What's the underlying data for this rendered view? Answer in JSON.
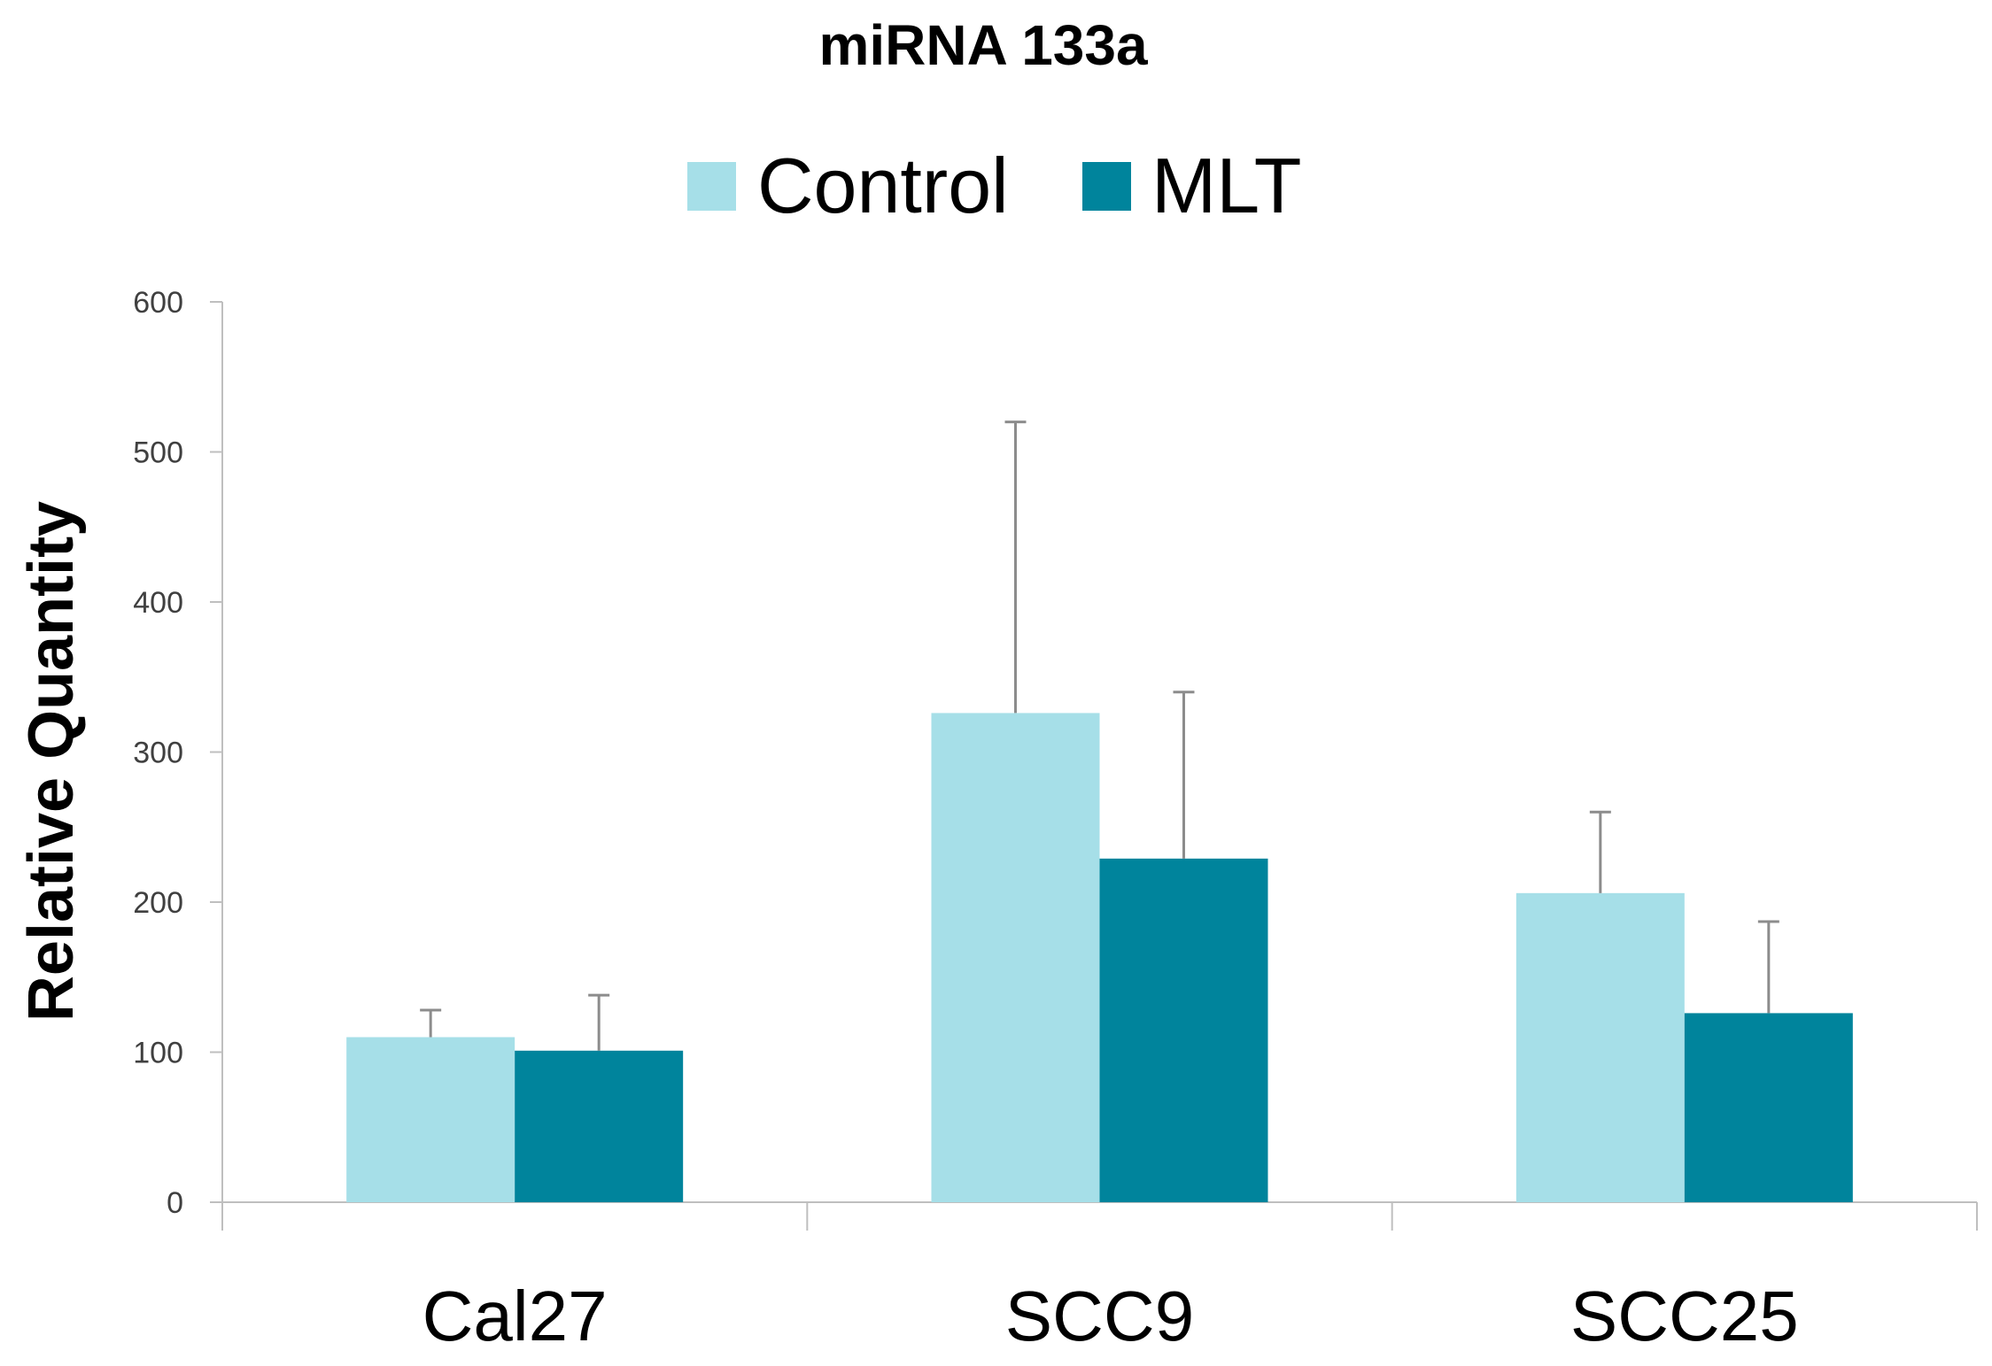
{
  "chart_data": {
    "type": "bar",
    "title": "miRNA 133a",
    "xlabel": "",
    "ylabel": "Relative Quantity",
    "categories": [
      "Cal27",
      "SCC9",
      "SCC25"
    ],
    "series": [
      {
        "name": "Control",
        "color": "#a6dfe8",
        "values": [
          110,
          326,
          206
        ],
        "error_upper": [
          128,
          520,
          260
        ]
      },
      {
        "name": "MLT",
        "color": "#00849c",
        "values": [
          101,
          229,
          126
        ],
        "error_upper": [
          138,
          340,
          187
        ]
      }
    ],
    "ylim": [
      0,
      600
    ],
    "yticks": [
      0,
      100,
      200,
      300,
      400,
      500,
      600
    ],
    "grid": false,
    "legend": "top-center"
  }
}
